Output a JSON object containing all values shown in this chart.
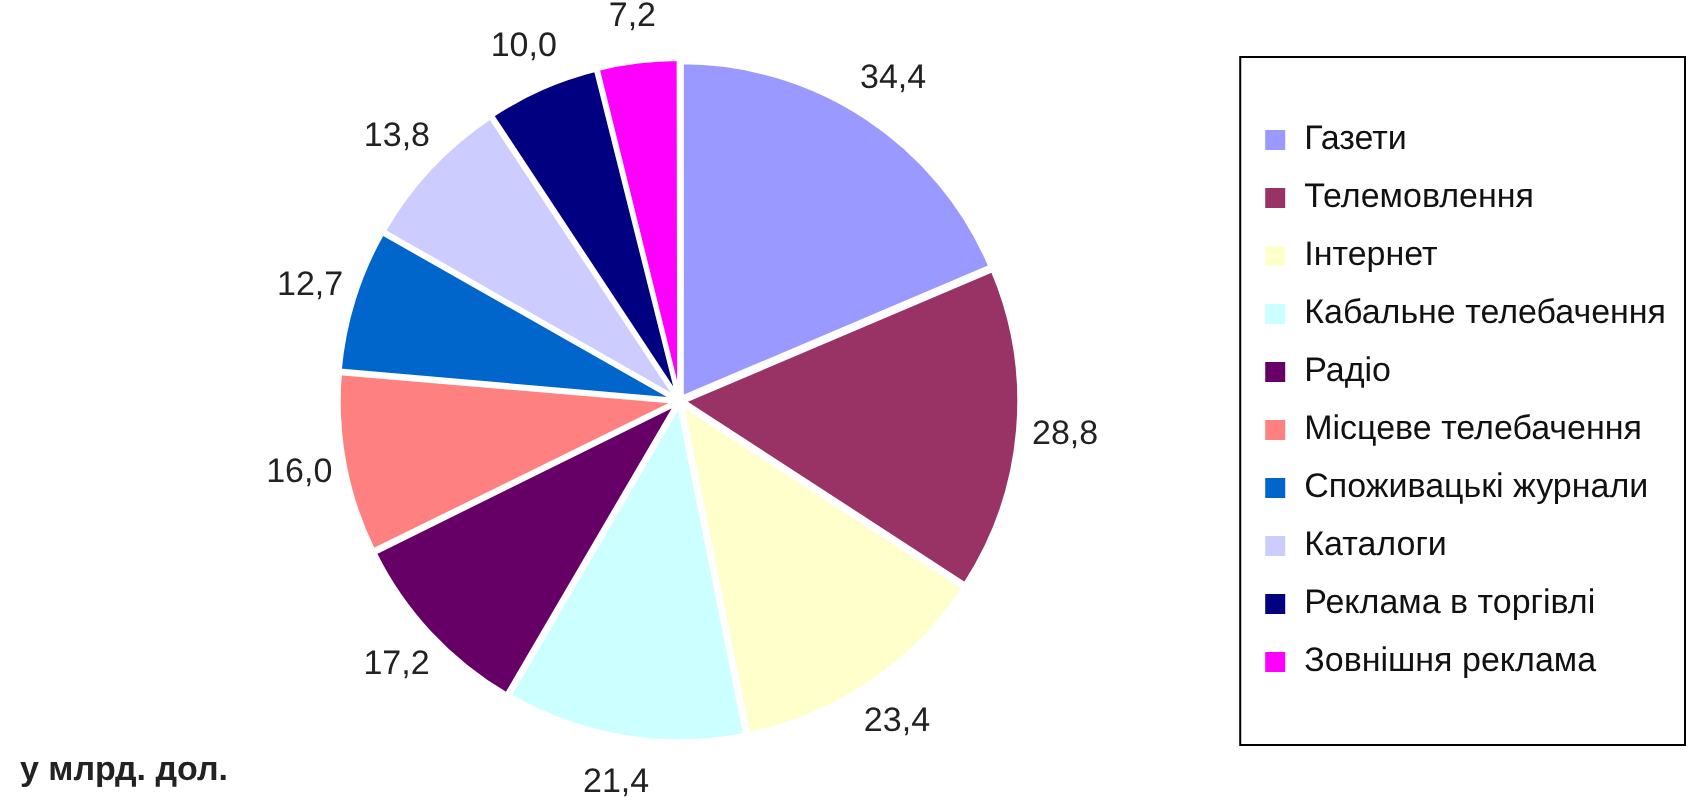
{
  "chart_data": {
    "type": "pie",
    "categories": [
      "Газети",
      "Телемовлення",
      "Інтернет",
      "Кабальне телебачення",
      "Радіо",
      "Місцеве телебачення",
      "Споживацькі журнали",
      "Каталоги",
      "Реклама в торгівлі",
      "Зовнішня реклама"
    ],
    "values": [
      34.4,
      28.8,
      23.4,
      21.4,
      17.2,
      16.0,
      12.7,
      13.8,
      10.0,
      7.2
    ],
    "value_labels": [
      "34,4",
      "28,8",
      "23,4",
      "21,4",
      "17,2",
      "16,0",
      "12,7",
      "13,8",
      "10,0",
      "7,2"
    ],
    "colors": [
      "#9999ff",
      "#993366",
      "#ffffcc",
      "#ccffff",
      "#660066",
      "#ff8080",
      "#0066cc",
      "#ccccff",
      "#000080",
      "#ff00ff"
    ],
    "legend": "right",
    "annotations": [
      "у млрд. дол."
    ]
  }
}
